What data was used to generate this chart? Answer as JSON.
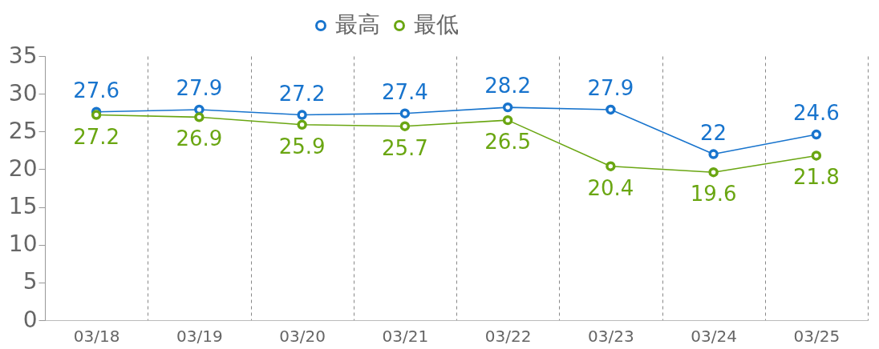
{
  "chart_data": {
    "type": "line",
    "categories": [
      "03/18",
      "03/19",
      "03/20",
      "03/21",
      "03/22",
      "03/23",
      "03/24",
      "03/25"
    ],
    "series": [
      {
        "name": "最高",
        "color": "#1874cd",
        "values": [
          27.6,
          27.9,
          27.2,
          27.4,
          28.2,
          27.9,
          22,
          24.6
        ]
      },
      {
        "name": "最低",
        "color": "#6aa612",
        "values": [
          27.2,
          26.9,
          25.9,
          25.7,
          26.5,
          20.4,
          19.6,
          21.8
        ]
      }
    ],
    "ylim": [
      0,
      35
    ],
    "yticks": [
      0,
      5,
      10,
      15,
      20,
      25,
      30,
      35
    ],
    "grid": "x",
    "legend": "top",
    "marker": "circle",
    "line_style": "solid",
    "data_labels": true
  }
}
